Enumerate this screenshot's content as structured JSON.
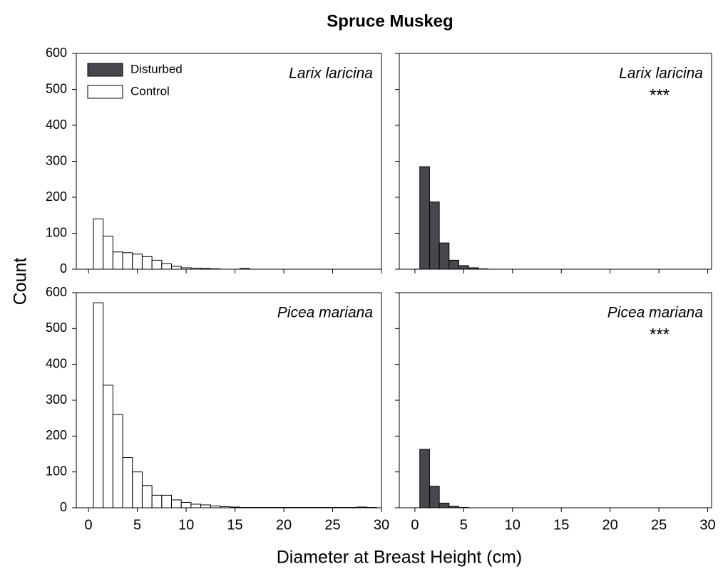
{
  "title": "Spruce Muskeg",
  "xlabel": "Diameter at Breast Height (cm)",
  "ylabel": "Count",
  "legend": [
    {
      "name": "Disturbed",
      "color": "#48474d"
    },
    {
      "name": "Control",
      "color": "#ffffff"
    }
  ],
  "chart_data": [
    {
      "type": "histogram",
      "label": "Larix laricina",
      "color": "#ffffff",
      "bins": [
        0.5,
        1.5,
        2.5,
        3.5,
        4.5,
        5.5,
        6.5,
        7.5,
        8.5,
        9.5,
        10.5,
        11.5,
        12.5,
        13.5,
        14.5,
        15.5,
        16.5,
        17.5,
        18.5,
        19.5,
        20.5,
        21.5,
        22.5,
        23.5,
        24.5,
        25.5,
        26.5,
        27.5,
        28.5,
        29.5
      ],
      "values": [
        140,
        92,
        48,
        46,
        42,
        35,
        25,
        15,
        8,
        4,
        3,
        2,
        1,
        0,
        0,
        2,
        0,
        0,
        0,
        0,
        0,
        0,
        0,
        0,
        0,
        0,
        0,
        0,
        0
      ],
      "xlim": [
        -1.25,
        30
      ],
      "ylim": [
        0,
        600
      ],
      "xticks": [
        0,
        5,
        10,
        15,
        20,
        25,
        30
      ],
      "yticks": [
        0,
        100,
        200,
        300,
        400,
        500,
        600
      ],
      "xticklabels": false,
      "yticklabels": true,
      "legend": true
    },
    {
      "type": "histogram",
      "label": "Larix laricina",
      "annotation": "***",
      "color": "#48474d",
      "bins": [
        0.5,
        1.5,
        2.5,
        3.5,
        4.5,
        5.5,
        6.5,
        7.5
      ],
      "values": [
        285,
        187,
        73,
        25,
        10,
        4,
        1
      ],
      "xlim": [
        -1.6,
        30.4
      ],
      "ylim": [
        0,
        600
      ],
      "xticks": [
        0,
        5,
        10,
        15,
        20,
        25,
        30
      ],
      "yticks": [
        0,
        100,
        200,
        300,
        400,
        500,
        600
      ],
      "xticklabels": false,
      "yticklabels": false,
      "legend": false
    },
    {
      "type": "histogram",
      "label": "Picea mariana",
      "color": "#ffffff",
      "bins": [
        0.5,
        1.5,
        2.5,
        3.5,
        4.5,
        5.5,
        6.5,
        7.5,
        8.5,
        9.5,
        10.5,
        11.5,
        12.5,
        13.5,
        14.5,
        15.5,
        16.5,
        17.5,
        18.5,
        19.5,
        20.5,
        21.5,
        22.5,
        23.5,
        24.5,
        25.5,
        26.5,
        27.5,
        28.5,
        29.5
      ],
      "values": [
        572,
        342,
        260,
        140,
        100,
        62,
        35,
        35,
        22,
        15,
        10,
        8,
        5,
        3,
        2,
        1,
        1,
        1,
        1,
        1,
        1,
        1,
        1,
        1,
        1,
        1,
        1,
        2,
        1
      ],
      "xlim": [
        -1.25,
        30
      ],
      "ylim": [
        0,
        600
      ],
      "xticks": [
        0,
        5,
        10,
        15,
        20,
        25,
        30
      ],
      "yticks": [
        0,
        100,
        200,
        300,
        400,
        500,
        600
      ],
      "xticklabels": true,
      "yticklabels": true,
      "legend": false
    },
    {
      "type": "histogram",
      "label": "Picea mariana",
      "annotation": "***",
      "color": "#48474d",
      "bins": [
        0.5,
        1.5,
        2.5,
        3.5,
        4.5,
        5.5
      ],
      "values": [
        163,
        60,
        13,
        4,
        1
      ],
      "xlim": [
        -1.6,
        30.4
      ],
      "ylim": [
        0,
        600
      ],
      "xticks": [
        0,
        5,
        10,
        15,
        20,
        25,
        30
      ],
      "yticks": [
        0,
        100,
        200,
        300,
        400,
        500,
        600
      ],
      "xticklabels": true,
      "yticklabels": false,
      "legend": false
    }
  ]
}
